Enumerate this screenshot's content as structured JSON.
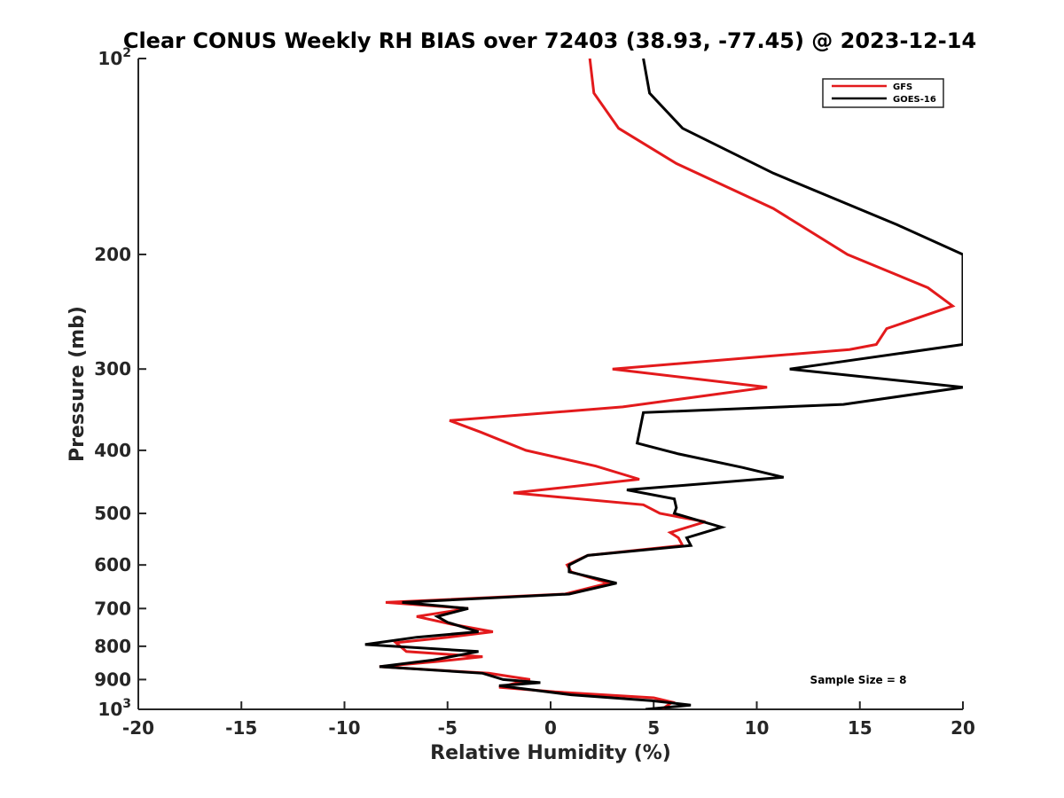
{
  "chart_data": {
    "type": "line",
    "title": "Clear CONUS Weekly RH BIAS over 72403 (38.93, -77.45) @ 2023-12-14",
    "xlabel": "Relative Humidity (%)",
    "ylabel": "Pressure (mb)",
    "xlim": [
      -20,
      20
    ],
    "ylim": [
      1000,
      100
    ],
    "yscale": "log",
    "y_reversed": true,
    "grid": false,
    "legend_position": "top-right",
    "x_ticks": [
      "-20",
      "-15",
      "-10",
      "-5",
      "0",
      "5",
      "10",
      "15",
      "20"
    ],
    "x_tick_values": [
      -20,
      -15,
      -10,
      -5,
      0,
      5,
      10,
      15,
      20
    ],
    "y_ticks": [
      {
        "value": 100,
        "base": "10",
        "exp": "2"
      },
      {
        "value": 200,
        "base": "200",
        "exp": ""
      },
      {
        "value": 300,
        "base": "300",
        "exp": ""
      },
      {
        "value": 400,
        "base": "400",
        "exp": ""
      },
      {
        "value": 500,
        "base": "500",
        "exp": ""
      },
      {
        "value": 600,
        "base": "600",
        "exp": ""
      },
      {
        "value": 700,
        "base": "700",
        "exp": ""
      },
      {
        "value": 800,
        "base": "800",
        "exp": ""
      },
      {
        "value": 900,
        "base": "900",
        "exp": ""
      },
      {
        "value": 1000,
        "base": "10",
        "exp": "3"
      }
    ],
    "annotation": "Sample Size = 8",
    "series": [
      {
        "name": "GFS",
        "color": "#e31a1c",
        "points": [
          [
            1.9,
            100
          ],
          [
            2.1,
            113
          ],
          [
            3.3,
            128
          ],
          [
            6.1,
            145
          ],
          [
            10.8,
            170
          ],
          [
            14.4,
            200
          ],
          [
            18.3,
            225
          ],
          [
            19.5,
            240
          ],
          [
            16.3,
            260
          ],
          [
            15.8,
            275
          ],
          [
            14.5,
            280
          ],
          [
            3.0,
            300
          ],
          [
            10.5,
            320
          ],
          [
            3.5,
            343
          ],
          [
            -4.9,
            360
          ],
          [
            -3.4,
            375
          ],
          [
            -1.2,
            400
          ],
          [
            2.2,
            423
          ],
          [
            4.3,
            443
          ],
          [
            -1.8,
            465
          ],
          [
            4.5,
            485
          ],
          [
            5.3,
            500
          ],
          [
            7.5,
            515
          ],
          [
            5.8,
            535
          ],
          [
            6.2,
            545
          ],
          [
            6.4,
            560
          ],
          [
            1.8,
            580
          ],
          [
            0.8,
            600
          ],
          [
            1.0,
            615
          ],
          [
            2.8,
            640
          ],
          [
            0.7,
            665
          ],
          [
            -8.0,
            685
          ],
          [
            -4.0,
            700
          ],
          [
            -6.5,
            720
          ],
          [
            -4.8,
            740
          ],
          [
            -2.8,
            760
          ],
          [
            -5.0,
            775
          ],
          [
            -7.5,
            790
          ],
          [
            -7.0,
            815
          ],
          [
            -3.3,
            830
          ],
          [
            -5.6,
            845
          ],
          [
            -8.3,
            860
          ],
          [
            -3.0,
            880
          ],
          [
            -1.0,
            900
          ],
          [
            -2.5,
            925
          ],
          [
            0.2,
            940
          ],
          [
            5.0,
            960
          ],
          [
            5.9,
            975
          ],
          [
            5.4,
            1000
          ]
        ]
      },
      {
        "name": "GOES-16",
        "color": "#000000",
        "points": [
          [
            4.5,
            100
          ],
          [
            4.8,
            113
          ],
          [
            6.4,
            128
          ],
          [
            10.8,
            150
          ],
          [
            16.8,
            180
          ],
          [
            20.0,
            200
          ],
          [
            20.0,
            275
          ],
          [
            11.6,
            300
          ],
          [
            20.0,
            320
          ],
          [
            14.2,
            340
          ],
          [
            4.5,
            350
          ],
          [
            4.2,
            390
          ],
          [
            6.2,
            405
          ],
          [
            9.3,
            425
          ],
          [
            11.3,
            440
          ],
          [
            3.7,
            460
          ],
          [
            6.0,
            475
          ],
          [
            6.1,
            490
          ],
          [
            6.0,
            500
          ],
          [
            8.3,
            525
          ],
          [
            6.6,
            545
          ],
          [
            6.8,
            560
          ],
          [
            1.8,
            580
          ],
          [
            0.9,
            600
          ],
          [
            0.9,
            615
          ],
          [
            3.2,
            640
          ],
          [
            0.9,
            665
          ],
          [
            -7.2,
            685
          ],
          [
            -4.0,
            700
          ],
          [
            -5.5,
            720
          ],
          [
            -5.0,
            735
          ],
          [
            -3.5,
            760
          ],
          [
            -6.5,
            775
          ],
          [
            -9.0,
            795
          ],
          [
            -3.5,
            815
          ],
          [
            -5.7,
            840
          ],
          [
            -8.3,
            860
          ],
          [
            -3.3,
            880
          ],
          [
            -2.3,
            900
          ],
          [
            -0.5,
            910
          ],
          [
            -2.5,
            920
          ],
          [
            1.0,
            950
          ],
          [
            4.9,
            970
          ],
          [
            6.8,
            985
          ],
          [
            4.6,
            1000
          ]
        ]
      }
    ]
  }
}
